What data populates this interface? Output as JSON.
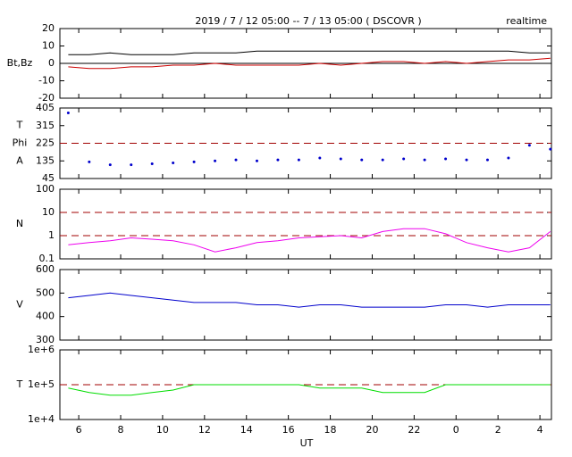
{
  "chart_data": [
    {
      "type": "line",
      "title": "2019 / 7 / 12  05:00 -- 7 / 13  05:00 ( DSCOVR )",
      "subtitle": "realtime",
      "ylabel": [
        "Bt,Bz"
      ],
      "xlim": [
        5.1,
        28.55
      ],
      "x": [
        5.5,
        6.5,
        7.5,
        8.5,
        9.5,
        10.5,
        11.5,
        12.5,
        13.5,
        14.5,
        15.5,
        16.5,
        17.5,
        18.5,
        19.5,
        20.5,
        21.5,
        22.5,
        23.5,
        24.5,
        25.5,
        26.5,
        27.5,
        28.5
      ],
      "ylim": [
        -20,
        20
      ],
      "yticks": [
        -20,
        -10,
        0,
        10,
        20
      ],
      "hlines": [
        0
      ],
      "hline_color": "#000000",
      "hline_dash": false,
      "series": [
        {
          "color": "#000000",
          "values": [
            5,
            5,
            6,
            5,
            5,
            5,
            6,
            6,
            6,
            7,
            7,
            7,
            7,
            7,
            7,
            7,
            7,
            7,
            7,
            7,
            7,
            7,
            6,
            6
          ]
        },
        {
          "color": "#cc0000",
          "values": [
            -2,
            -3,
            -3,
            -2,
            -2,
            -1,
            -1,
            0,
            -1,
            -1,
            -1,
            -1,
            0,
            -1,
            0,
            1,
            1,
            0,
            1,
            0,
            1,
            2,
            2,
            3
          ]
        }
      ]
    },
    {
      "type": "scatter",
      "ylabel": [
        "T",
        "Phi",
        "A"
      ],
      "xlim": [
        5.1,
        28.55
      ],
      "x": [
        5.5,
        6.5,
        7.5,
        8.5,
        9.5,
        10.5,
        11.5,
        12.5,
        13.5,
        14.5,
        15.5,
        16.5,
        17.5,
        18.5,
        19.5,
        20.5,
        21.5,
        22.5,
        23.5,
        24.5,
        25.5,
        26.5,
        27.5,
        28.5
      ],
      "ylim": [
        45,
        405
      ],
      "yticks": [
        45,
        135,
        225,
        315,
        405
      ],
      "hlines": [
        225
      ],
      "hline_color": "#a00000",
      "hline_dash": true,
      "series": [
        {
          "color": "#0000cc",
          "values": [
            380,
            130,
            115,
            115,
            120,
            125,
            130,
            135,
            140,
            135,
            140,
            140,
            150,
            145,
            140,
            140,
            145,
            140,
            145,
            140,
            140,
            150,
            215,
            195
          ]
        }
      ]
    },
    {
      "type": "line",
      "ylabel": [
        "N"
      ],
      "log": true,
      "xlim": [
        5.1,
        28.55
      ],
      "x": [
        5.5,
        6.5,
        7.5,
        8.5,
        9.5,
        10.5,
        11.5,
        12.5,
        13.5,
        14.5,
        15.5,
        16.5,
        17.5,
        18.5,
        19.5,
        20.5,
        21.5,
        22.5,
        23.5,
        24.5,
        25.5,
        26.5,
        27.5,
        28.5
      ],
      "ylim": [
        0.1,
        100
      ],
      "yticks": [
        0.1,
        1,
        10,
        100
      ],
      "hlines": [
        1,
        10
      ],
      "hline_color": "#a00000",
      "hline_dash": true,
      "series": [
        {
          "color": "#ee00ee",
          "values": [
            0.4,
            0.5,
            0.6,
            0.8,
            0.7,
            0.6,
            0.4,
            0.2,
            0.3,
            0.5,
            0.6,
            0.8,
            0.9,
            1.0,
            0.8,
            1.5,
            2,
            2,
            1.2,
            0.5,
            0.3,
            0.2,
            0.3,
            1.5
          ]
        }
      ]
    },
    {
      "type": "line",
      "ylabel": [
        "V"
      ],
      "xlim": [
        5.1,
        28.55
      ],
      "x": [
        5.5,
        6.5,
        7.5,
        8.5,
        9.5,
        10.5,
        11.5,
        12.5,
        13.5,
        14.5,
        15.5,
        16.5,
        17.5,
        18.5,
        19.5,
        20.5,
        21.5,
        22.5,
        23.5,
        24.5,
        25.5,
        26.5,
        27.5,
        28.5
      ],
      "ylim": [
        300,
        600
      ],
      "yticks": [
        300,
        400,
        500,
        600
      ],
      "series": [
        {
          "color": "#0000cc",
          "values": [
            480,
            490,
            500,
            490,
            480,
            470,
            460,
            460,
            460,
            450,
            450,
            440,
            450,
            450,
            440,
            440,
            440,
            440,
            450,
            450,
            440,
            450,
            450,
            450
          ]
        }
      ]
    },
    {
      "type": "line",
      "ylabel": [
        "T"
      ],
      "log": true,
      "xlabel": "UT",
      "xlim": [
        5.1,
        28.55
      ],
      "x": [
        5.5,
        6.5,
        7.5,
        8.5,
        9.5,
        10.5,
        11.5,
        12.5,
        13.5,
        14.5,
        15.5,
        16.5,
        17.5,
        18.5,
        19.5,
        20.5,
        21.5,
        22.5,
        23.5,
        24.5,
        25.5,
        26.5,
        27.5,
        28.5
      ],
      "xticks": [
        6,
        8,
        10,
        12,
        14,
        16,
        18,
        20,
        22,
        {
          "value": 24,
          "label": "0"
        },
        {
          "value": 26,
          "label": "2"
        },
        {
          "value": 28,
          "label": "4"
        }
      ],
      "ylim": [
        10000,
        1000000
      ],
      "yticks": [
        {
          "value": 10000,
          "label": "1e+4"
        },
        {
          "value": 100000,
          "label": "1e+5"
        },
        {
          "value": 1000000,
          "label": "1e+6"
        }
      ],
      "hlines": [
        100000
      ],
      "hline_color": "#a00000",
      "hline_dash": true,
      "series": [
        {
          "color": "#00dd00",
          "values": [
            80000,
            60000,
            50000,
            50000,
            60000,
            70000,
            100000,
            100000,
            100000,
            100000,
            100000,
            100000,
            80000,
            80000,
            80000,
            60000,
            60000,
            60000,
            100000,
            100000,
            100000,
            100000,
            100000,
            100000
          ]
        }
      ]
    }
  ]
}
